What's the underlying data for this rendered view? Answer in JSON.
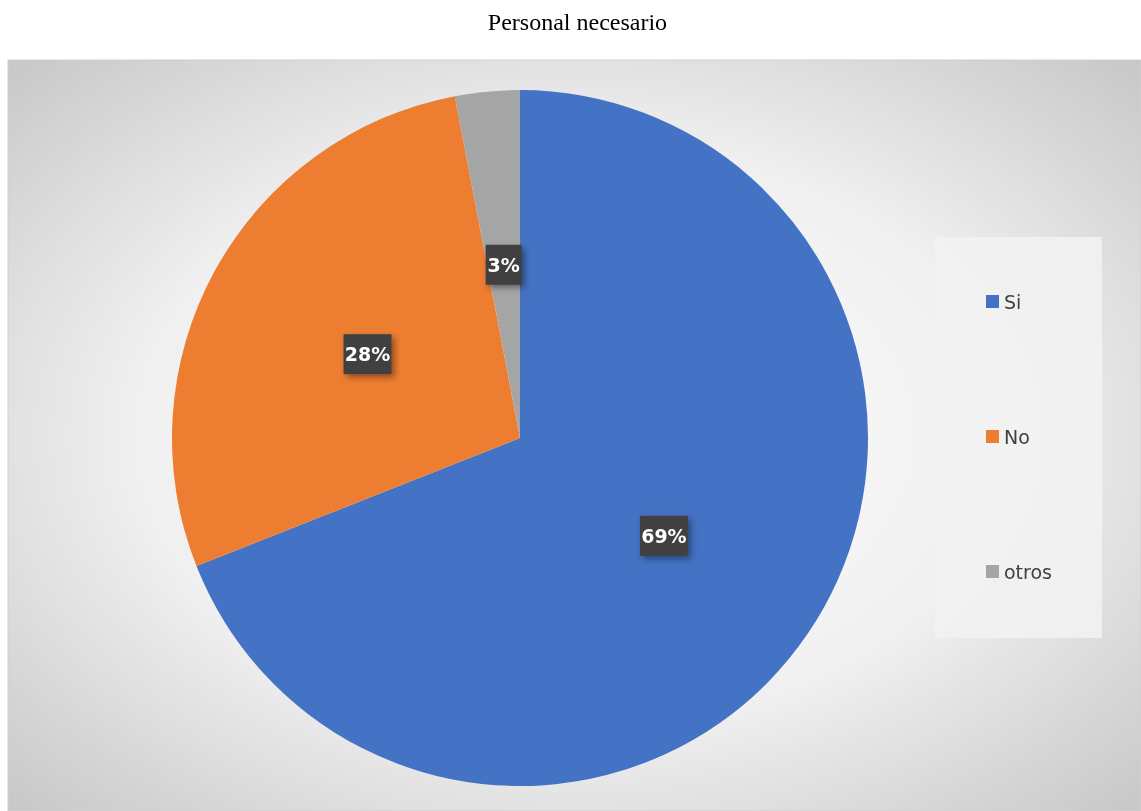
{
  "chart_data": {
    "type": "pie",
    "title": "Personal necesario",
    "categories": [
      "Si",
      "No",
      "otros"
    ],
    "values": [
      69,
      28,
      3
    ],
    "value_labels": [
      "69%",
      "28%",
      "3%"
    ],
    "colors": [
      "#4472c4",
      "#ed7d31",
      "#a5a5a5"
    ],
    "legend": "right"
  }
}
